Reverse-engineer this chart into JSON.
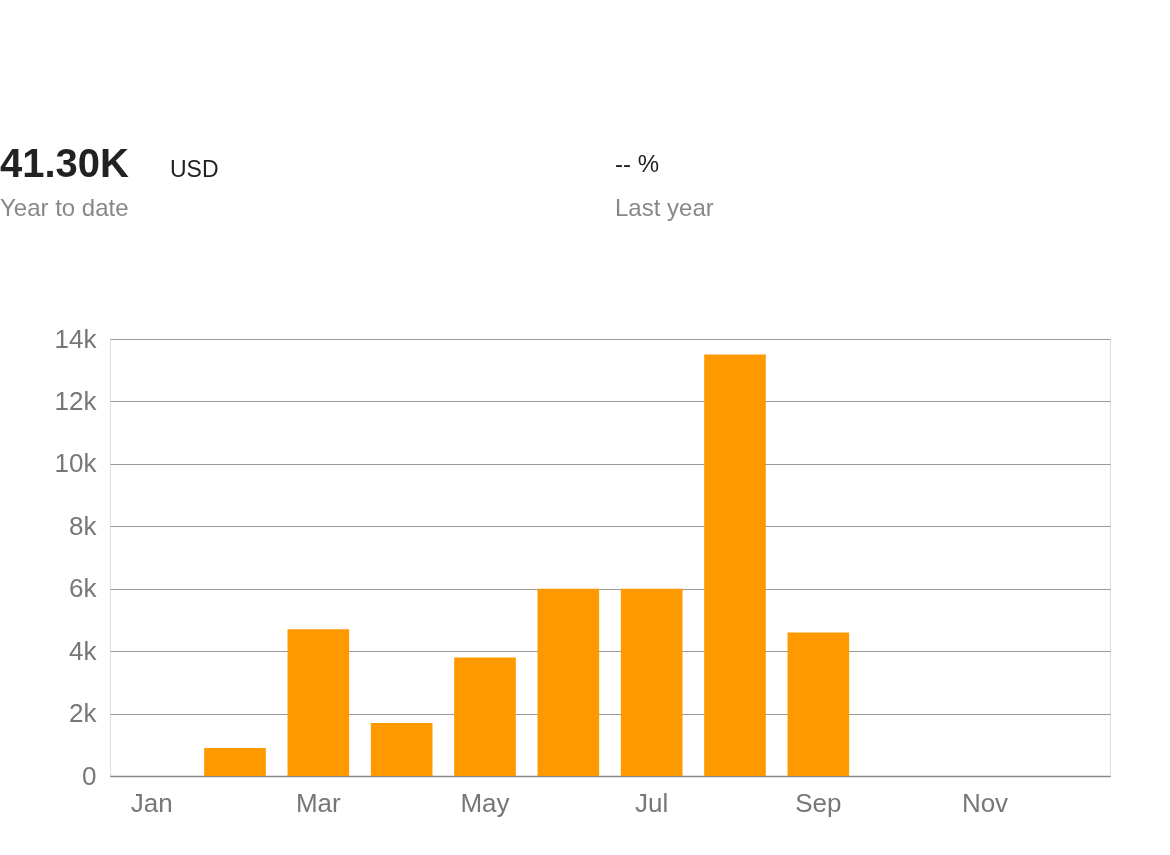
{
  "chart_data": {
    "type": "bar",
    "categories": [
      "Jan",
      null,
      "Mar",
      null,
      "May",
      null,
      "Jul",
      null,
      "Sep",
      null,
      "Nov",
      null
    ],
    "values": [
      0,
      900,
      4700,
      1700,
      3800,
      6000,
      6000,
      13500,
      4600,
      null,
      null,
      null
    ],
    "color": "#ff9900",
    "ylim": [
      0,
      14000
    ],
    "yticks": [
      0,
      {
        "value": 2000,
        "label": "2k"
      },
      {
        "value": 4000,
        "label": "4k"
      },
      {
        "value": 6000,
        "label": "6k"
      },
      {
        "value": 8000,
        "label": "8k"
      },
      {
        "value": 10000,
        "label": "10k"
      },
      {
        "value": 12000,
        "label": "12k"
      },
      {
        "value": 14000,
        "label": "14k"
      }
    ],
    "grid": "y",
    "annotations": [
      "41.30K USD",
      "Year to date",
      "-- %",
      "Last year"
    ]
  }
}
